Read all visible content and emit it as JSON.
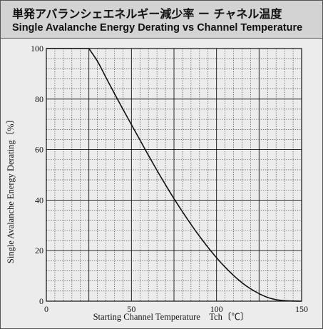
{
  "header": {
    "title_jp": "単発アバランシェエネルギー減少率 ー チャネル温度",
    "title_en": "Single Avalanche Energy Derating vs Channel Temperature"
  },
  "chart_data": {
    "type": "line",
    "title": "単発アバランシェエネルギー減少率 ー チャネル温度",
    "subtitle": "Single Avalanche Energy Derating vs Channel Temperature",
    "xlabel": "Starting Channel Temperature　Tch〔℃〕",
    "ylabel": "Single Avalanche Energy Derating〔%〕",
    "xlim": [
      0,
      150
    ],
    "ylim": [
      0,
      100
    ],
    "x_ticks": [
      "0",
      "50",
      "100",
      "150"
    ],
    "y_ticks": [
      "0",
      "20",
      "40",
      "60",
      "80",
      "100"
    ],
    "grid": true,
    "minor_grid": "dotted",
    "series": [
      {
        "x": [
          0,
          25,
          30,
          35,
          40,
          45,
          50,
          55,
          60,
          65,
          70,
          75,
          80,
          85,
          90,
          95,
          100,
          105,
          110,
          115,
          120,
          125,
          130,
          135,
          140,
          145,
          150
        ],
        "y": [
          100,
          100,
          95,
          88.6,
          82.2,
          76,
          69.9,
          63.8,
          57.7,
          51.8,
          46.1,
          40.6,
          35.4,
          30.4,
          25.7,
          21.3,
          17.2,
          13.5,
          10.2,
          7.3,
          4.9,
          3.0,
          1.5,
          0.6,
          0.2,
          0.05,
          0
        ]
      }
    ],
    "colors": {
      "line": "#111111",
      "grid": "#111111",
      "background": "#ececec",
      "header": "#d3d3d3"
    }
  }
}
